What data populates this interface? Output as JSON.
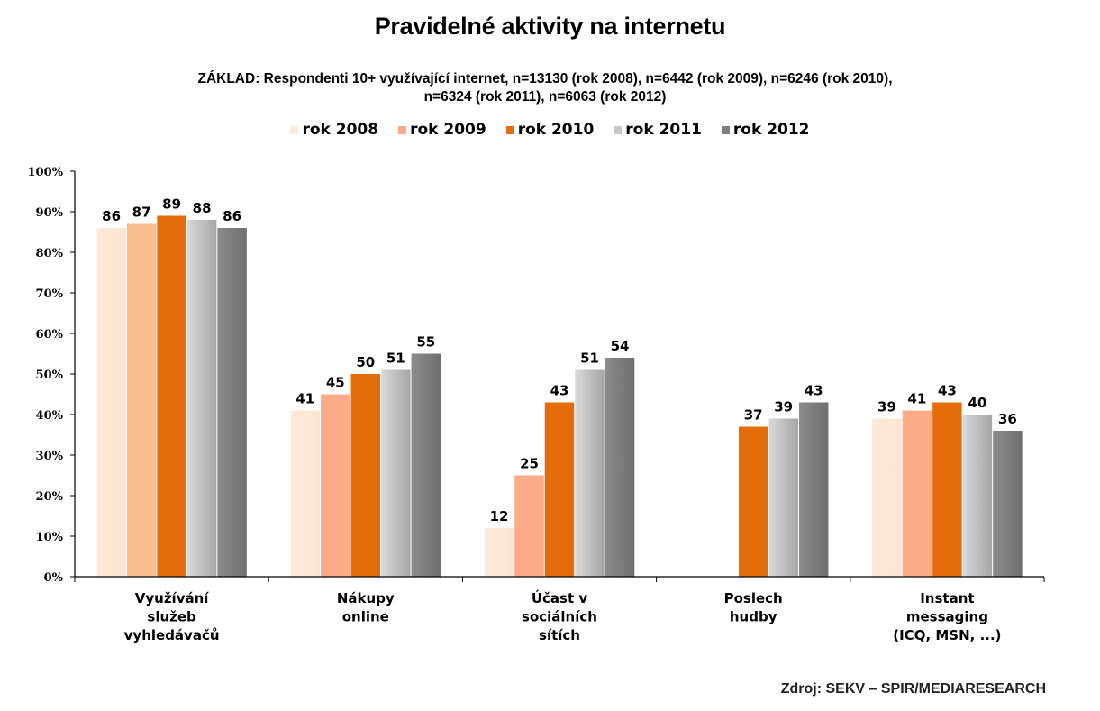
{
  "chart_data": {
    "type": "bar",
    "title": "Pravidelné aktivity na internetu",
    "subtitle_lines": [
      "ZÁKLAD: Respondenti 10+ využívající internet,  n=13130 (rok 2008), n=6442 (rok 2009), n=6246 (rok 2010),",
      "n=6324 (rok 2011), n=6063 (rok 2012)"
    ],
    "categories": [
      [
        "Využívání",
        "služeb",
        "vyhledávačů"
      ],
      [
        "Nákupy",
        "online"
      ],
      [
        "Účast v",
        "sociálních",
        "sítích"
      ],
      [
        "Poslech",
        "hudby"
      ],
      [
        "Instant",
        "messaging",
        "(ICQ, MSN, ...)"
      ]
    ],
    "series": [
      {
        "name": "rok 2008",
        "color": "#fde9da",
        "color_end": "#fce4d4",
        "values": [
          86,
          41,
          12,
          null,
          39
        ]
      },
      {
        "name": "rok 2009",
        "color": "#fbab88",
        "color_alt_first": "#f8bf8c",
        "values": [
          87,
          45,
          25,
          null,
          41
        ]
      },
      {
        "name": "rok 2010",
        "color": "#e46c0a",
        "values": [
          89,
          50,
          43,
          37,
          43
        ]
      },
      {
        "name": "rok 2011",
        "color": "#d9d9d9",
        "color_end": "#a6a6a6",
        "values": [
          88,
          51,
          51,
          39,
          40
        ]
      },
      {
        "name": "rok 2012",
        "color": "#8c8c8c",
        "color_end": "#6e6e6e",
        "values": [
          86,
          55,
          54,
          43,
          36
        ]
      }
    ],
    "yticks": [
      "0%",
      "10%",
      "20%",
      "30%",
      "40%",
      "50%",
      "60%",
      "70%",
      "80%",
      "90%",
      "100%"
    ],
    "ylim": [
      0,
      100
    ],
    "xlabel": "",
    "ylabel": "",
    "legend_position": "top",
    "grid": false
  },
  "source": "Zdroj: SEKV – SPIR/MEDIARESEARCH"
}
